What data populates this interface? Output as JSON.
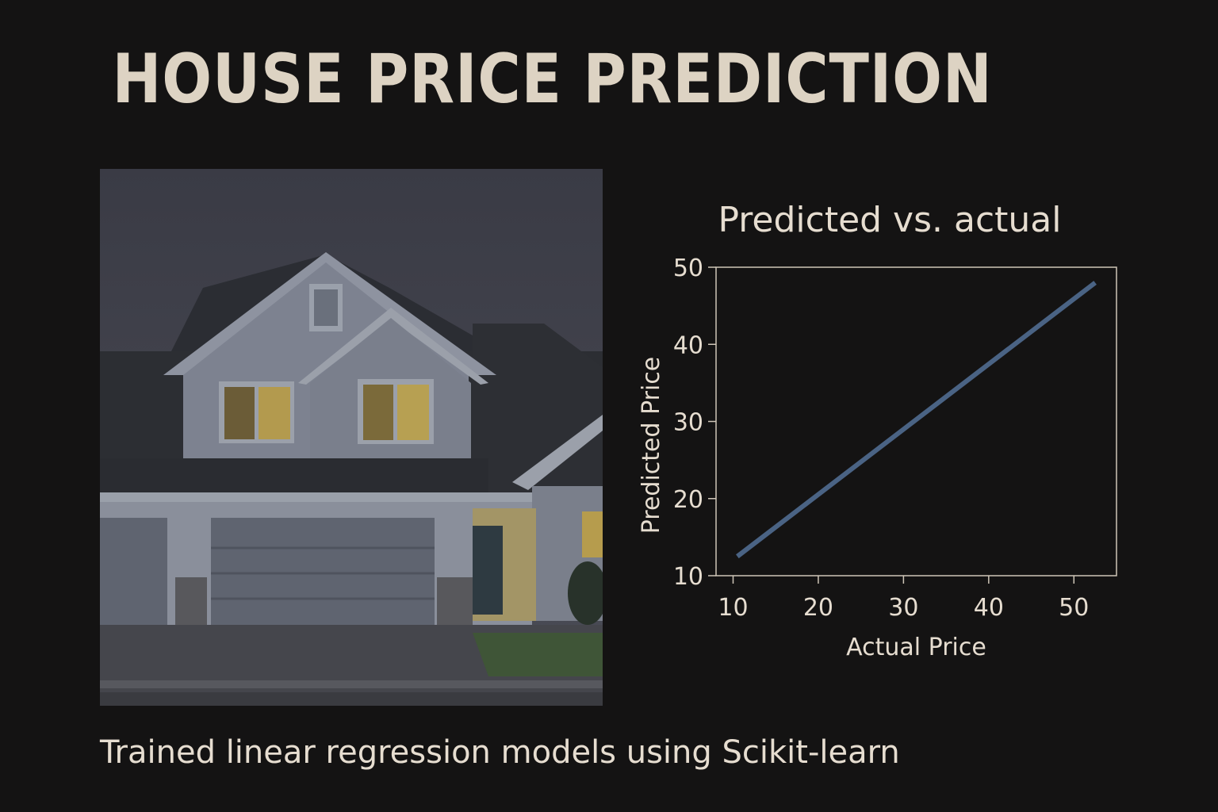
{
  "header": {
    "title": "HOUSE PRICE PREDICTION"
  },
  "caption": "Trained linear regression models using Scikit-learn",
  "image": {
    "subject": "two-story house at dusk",
    "icon": "house-photo"
  },
  "chart_data": {
    "type": "line",
    "title": "Predicted vs. actual",
    "xlabel": "Actual Price",
    "ylabel": "Predicted Price",
    "xlim": [
      8,
      55
    ],
    "ylim": [
      10,
      50
    ],
    "xticks": [
      10,
      20,
      30,
      40,
      50
    ],
    "yticks": [
      10,
      20,
      30,
      40,
      50
    ],
    "grid": false,
    "legend": "none",
    "series": [
      {
        "x": [
          10.5,
          52.5
        ],
        "y": [
          12.5,
          48
        ],
        "color": "#4a6384"
      }
    ]
  }
}
